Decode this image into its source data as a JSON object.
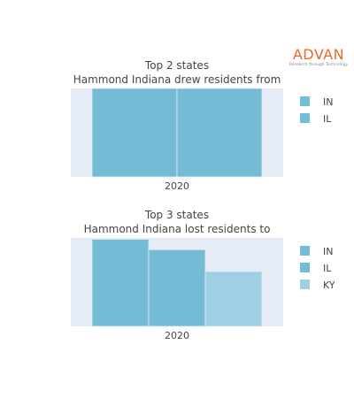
{
  "brand": {
    "name": "ADVAN",
    "tagline": "Research through Technology",
    "color": "#e8692d",
    "tag_color": "#8a8a8a"
  },
  "plot_background": "#e5ecf6",
  "chart_data": [
    {
      "type": "bar",
      "title_lines": [
        "Top 2 states",
        "Hammond Indiana drew residents from"
      ],
      "categories": [
        "2020"
      ],
      "series": [
        {
          "name": "IN",
          "values": [
            1.0
          ],
          "color": "#74bcd5"
        },
        {
          "name": "IL",
          "values": [
            1.0
          ],
          "color": "#74bcd5"
        }
      ],
      "ylim": [
        0,
        1
      ],
      "xlabel": "",
      "ylabel": "",
      "grid": false,
      "legend": "right"
    },
    {
      "type": "bar",
      "title_lines": [
        "Top 3 states",
        "Hammond Indiana lost residents to"
      ],
      "categories": [
        "2020"
      ],
      "series": [
        {
          "name": "IN",
          "values": [
            1.0
          ],
          "color": "#74bcd5"
        },
        {
          "name": "IL",
          "values": [
            0.88
          ],
          "color": "#74bcd5"
        },
        {
          "name": "KY",
          "values": [
            0.63
          ],
          "color": "#9dd0e3"
        }
      ],
      "ylim": [
        0,
        1.015
      ],
      "xlabel": "",
      "ylabel": "",
      "grid": false,
      "legend": "right"
    }
  ]
}
